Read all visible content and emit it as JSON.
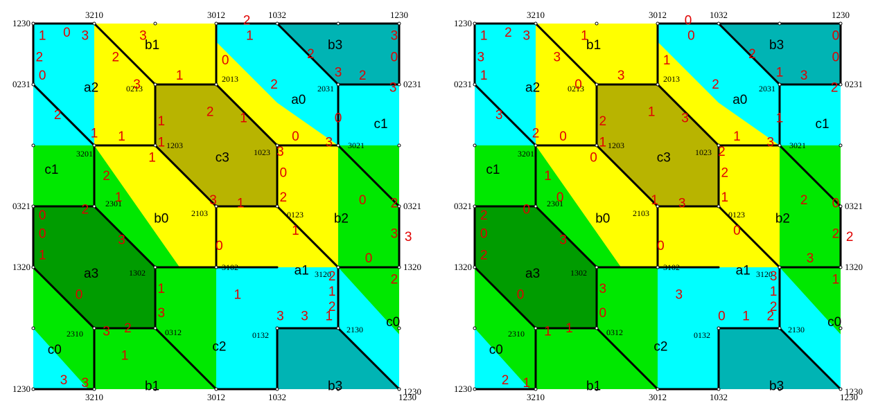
{
  "colors": {
    "cyan": "#00ffff",
    "yellow": "#ffff00",
    "green": "#00e800",
    "dark_green": "#009c00",
    "teal": "#00b4b4",
    "olive": "#b8b400",
    "edge_label": "#e00000",
    "outline": "#000000"
  },
  "left": {
    "vertex_labels": {
      "top": [
        "3210",
        "3012",
        "1032",
        "1230"
      ],
      "bottom": [
        "3210",
        "3012",
        "1032",
        "1230"
      ],
      "left": [
        "1230",
        "0231",
        "0321",
        "1320",
        "1230"
      ],
      "right": [
        "0231",
        "0321",
        "1320",
        "1230"
      ],
      "inner": [
        "0213",
        "2013",
        "2031",
        "1203",
        "1023",
        "3021",
        "3201",
        "2301",
        "2103",
        "0123",
        "1302",
        "3102",
        "3120",
        "2310",
        "0312",
        "0132",
        "2130"
      ]
    },
    "region_labels": [
      "b1",
      "b3",
      "a2",
      "a0",
      "c3",
      "c1",
      "c1",
      "b0",
      "b2",
      "a3",
      "a1",
      "c0",
      "c2",
      "c0",
      "b1",
      "b3"
    ],
    "edge_labels": [
      "1",
      "0",
      "3",
      "2",
      "0",
      "3",
      "2",
      "3",
      "1",
      "0",
      "1",
      "2",
      "1",
      "2",
      "3",
      "2",
      "3",
      "0",
      "3",
      "0",
      "1",
      "1",
      "1",
      "1",
      "0",
      "3",
      "2",
      "2",
      "0",
      "0",
      "1",
      "2",
      "3",
      "2",
      "1",
      "1",
      "3",
      "1",
      "0",
      "3",
      "0",
      "2",
      "1",
      "0",
      "2",
      "3",
      "0",
      "2",
      "2",
      "1",
      "2",
      "3",
      "3",
      "1",
      "1",
      "1",
      "3",
      "2",
      "3",
      "0",
      "3",
      "3",
      "1"
    ],
    "edge_label_extra": [
      "2",
      "3"
    ]
  },
  "right": {
    "vertex_labels": {
      "top": [
        "3210",
        "3012",
        "1032",
        "1230"
      ],
      "bottom": [
        "3210",
        "3012",
        "1032",
        "1230"
      ],
      "left": [
        "1230",
        "0231",
        "0321",
        "1320",
        "1230"
      ],
      "right": [
        "0231",
        "0321",
        "1320",
        "1230"
      ],
      "inner": [
        "0213",
        "2013",
        "2031",
        "1203",
        "1023",
        "3021",
        "3201",
        "2301",
        "2103",
        "0123",
        "1302",
        "3102",
        "3120",
        "2310",
        "0312",
        "0132",
        "2130"
      ]
    },
    "region_labels": [
      "b1",
      "b3",
      "a2",
      "a0",
      "c3",
      "c1",
      "c1",
      "b0",
      "b2",
      "a3",
      "a1",
      "c0",
      "c2",
      "c0",
      "b1",
      "b3"
    ],
    "edge_labels": [
      "1",
      "2",
      "3",
      "3",
      "1",
      "1",
      "3",
      "0",
      "3",
      "1",
      "0",
      "2",
      "3",
      "2",
      "1",
      "3",
      "0",
      "0",
      "2",
      "1",
      "2",
      "0",
      "2",
      "1",
      "1",
      "3",
      "1",
      "3",
      "2",
      "0",
      "2",
      "0",
      "3",
      "1",
      "0",
      "0",
      "1",
      "3",
      "0",
      "2",
      "2",
      "1",
      "0",
      "2",
      "0",
      "2",
      "3",
      "1",
      "3",
      "1",
      "2",
      "0",
      "1",
      "2",
      "3",
      "3",
      "0",
      "1",
      "1",
      "0",
      "2",
      "1"
    ],
    "edge_label_extra": [
      "0",
      "2"
    ]
  }
}
